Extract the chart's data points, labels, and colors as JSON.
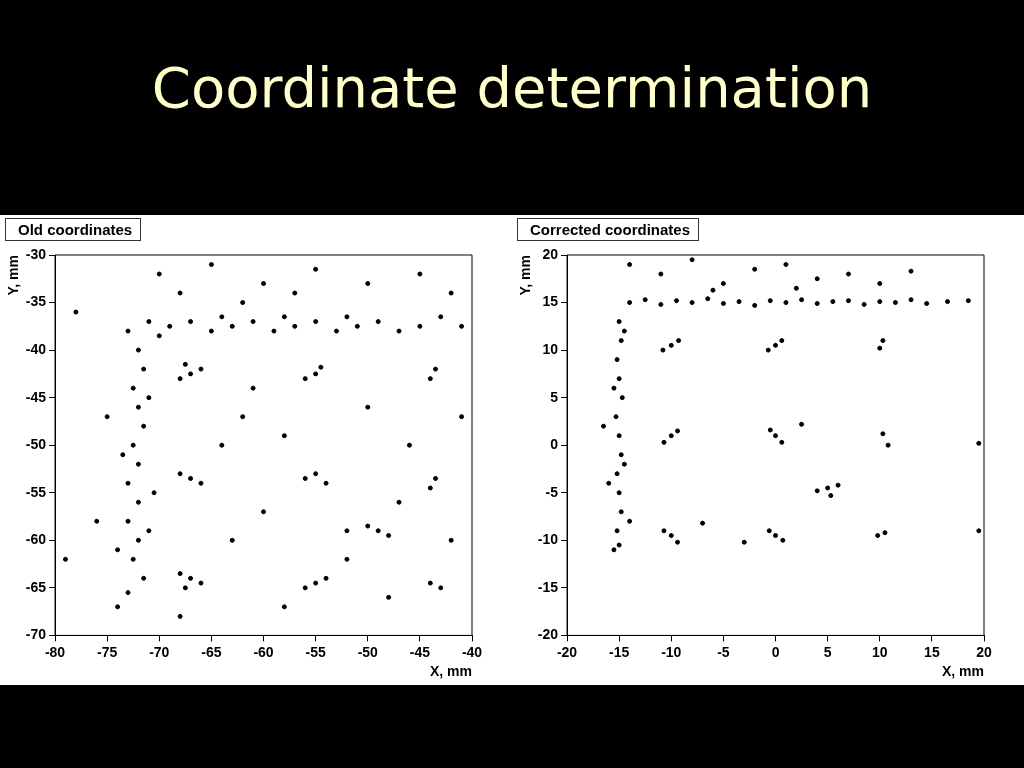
{
  "chart_data": [
    {
      "type": "other",
      "title": "Coordinate determination"
    },
    {
      "type": "scatter",
      "title": "Old coordinates",
      "xlabel": "X, mm",
      "ylabel": "Y, mm",
      "color": "#000000",
      "marker": "circle",
      "xlim": [
        -80,
        -40
      ],
      "ylim": [
        -70,
        -30
      ],
      "xticks": [
        -80,
        -75,
        -70,
        -65,
        -60,
        -55,
        -50,
        -45,
        -40
      ],
      "yticks": [
        -70,
        -65,
        -60,
        -55,
        -50,
        -45,
        -40,
        -35,
        -30
      ],
      "x": [
        -73,
        -71,
        -69,
        -67,
        -65,
        -63,
        -61,
        -59,
        -57,
        -55,
        -53,
        -51,
        -49,
        -47,
        -45,
        -43,
        -41,
        -70,
        -64,
        -58,
        -52,
        -72,
        -71.5,
        -72.5,
        -72,
        -71.5,
        -72.5,
        -72,
        -73,
        -72,
        -73,
        -72,
        -72.5,
        -71.5,
        -73,
        -71,
        -73.5,
        -70.5,
        -74,
        -71,
        -67,
        -68,
        -66,
        -67.5,
        -55,
        -56,
        -54.5,
        -67,
        -68,
        -66,
        -55,
        -56,
        -54,
        -49,
        -50,
        -48,
        -52,
        -67,
        -68,
        -66,
        -67.5,
        -55,
        -56,
        -54,
        -44,
        -43.5,
        -43.5,
        -44,
        -44,
        -43,
        -70,
        -65,
        -60,
        -55,
        -50,
        -45,
        -42,
        -68,
        -62,
        -57,
        -75,
        -76,
        -62,
        -58,
        -50,
        -46,
        -60,
        -63,
        -52,
        -47,
        -41,
        -42,
        -58,
        -68,
        -74,
        -78,
        -79,
        -48,
        -61,
        -64
      ],
      "values": [
        -38,
        -37,
        -37.5,
        -37,
        -38,
        -37.5,
        -37,
        -38,
        -37.5,
        -37,
        -38,
        -37.5,
        -37,
        -38,
        -37.5,
        -36.5,
        -37.5,
        -38.5,
        -36.5,
        -36.5,
        -36.5,
        -40,
        -42,
        -44,
        -46,
        -48,
        -50,
        -52,
        -54,
        -56,
        -58,
        -60,
        -62,
        -64,
        -65.5,
        -45,
        -51,
        -55,
        -61,
        -59,
        -42.5,
        -43,
        -42,
        -41.5,
        -42.5,
        -43,
        -41.8,
        -53.5,
        -53,
        -54,
        -53,
        -53.5,
        -54,
        -59,
        -58.5,
        -59.5,
        -59,
        -64,
        -63.5,
        -64.5,
        -65,
        -64.5,
        -65,
        -64,
        -43,
        -42,
        -53.5,
        -54.5,
        -64.5,
        -65,
        -32,
        -31,
        -33,
        -31.5,
        -33,
        -32,
        -34,
        -34,
        -35,
        -34,
        -47,
        -58,
        -47,
        -49,
        -46,
        -50,
        -57,
        -60,
        -62,
        -56,
        -47,
        -60,
        -67,
        -68,
        -67,
        -36,
        -62,
        -66,
        -44,
        -50
      ]
    },
    {
      "type": "scatter",
      "title": "Corrected coordinates",
      "xlabel": "X, mm",
      "ylabel": "Y, mm",
      "color": "#000000",
      "marker": "circle",
      "xlim": [
        -20,
        20
      ],
      "ylim": [
        -20,
        20
      ],
      "xticks": [
        -20,
        -15,
        -10,
        -5,
        0,
        5,
        10,
        15,
        20
      ],
      "yticks": [
        -20,
        -15,
        -10,
        -5,
        0,
        5,
        10,
        15,
        20
      ],
      "x": [
        -14,
        -12.5,
        -11,
        -9.5,
        -8,
        -6.5,
        -5,
        -3.5,
        -2,
        -0.5,
        1,
        2.5,
        4,
        5.5,
        7,
        8.5,
        10,
        11.5,
        13,
        14.5,
        16.5,
        18.5,
        -14,
        -11,
        -8,
        -5,
        -2,
        1,
        4,
        7,
        10,
        13,
        -6,
        2,
        -15,
        -14.8,
        -15.2,
        -15,
        -14.7,
        -15.3,
        -15,
        -14.8,
        -15.2,
        -15,
        -14.8,
        -15.2,
        -15,
        -15.5,
        -14.5,
        -15.5,
        -14.5,
        -16,
        -14,
        -16.5,
        -10,
        -10.8,
        -9.3,
        0,
        -0.7,
        0.6,
        10.3,
        10,
        -10,
        -10.7,
        -9.4,
        0,
        0.6,
        -0.5,
        10.3,
        10.8,
        5,
        4,
        6,
        5.3,
        -10,
        -10.7,
        -9.4,
        0,
        0.7,
        -0.6,
        10.5,
        9.8,
        19.5,
        19.5,
        2.5,
        -7,
        -3
      ],
      "values": [
        15,
        15.3,
        14.8,
        15.2,
        15,
        15.4,
        14.9,
        15.1,
        14.7,
        15.2,
        15,
        15.3,
        14.9,
        15.1,
        15.2,
        14.8,
        15.1,
        15,
        15.3,
        14.9,
        15.1,
        15.2,
        19,
        18,
        19.5,
        17,
        18.5,
        19,
        17.5,
        18,
        17,
        18.3,
        16.3,
        16.5,
        13,
        11,
        9,
        7,
        5,
        3,
        1,
        -1,
        -3,
        -5,
        -7,
        -9,
        -10.5,
        -11,
        12,
        6,
        -2,
        -4,
        -8,
        2,
        10.5,
        10,
        11,
        10.5,
        10,
        11,
        11,
        10.2,
        1,
        0.3,
        1.5,
        1,
        0.3,
        1.6,
        1.2,
        0,
        -4.5,
        -4.8,
        -4.2,
        -5.3,
        -9.5,
        -9,
        -10.2,
        -9.5,
        -10,
        -9,
        -9.2,
        -9.5,
        0.2,
        -9,
        2.2,
        -8.2,
        -10.2
      ]
    }
  ]
}
